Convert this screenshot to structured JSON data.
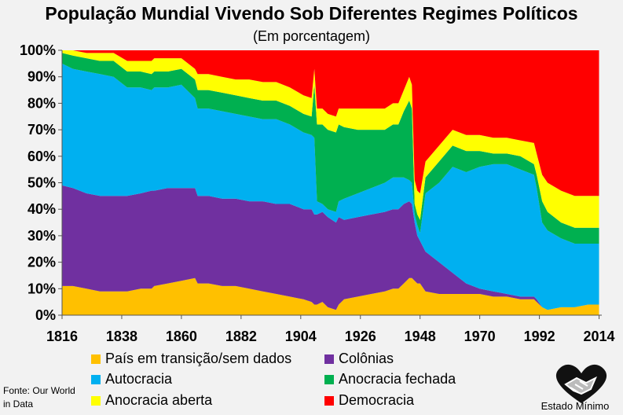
{
  "chart_data": {
    "type": "area",
    "stacked": true,
    "title": "População Mundial Vivendo Sob Diferentes Regimes Políticos",
    "subtitle": "(Em porcentagem)",
    "xlabel": "",
    "ylabel": "",
    "xlim": [
      1816,
      2015
    ],
    "ylim": [
      0,
      100
    ],
    "x_ticks": [
      "1816",
      "1838",
      "1860",
      "1882",
      "1904",
      "1926",
      "1948",
      "1970",
      "1992",
      "2014"
    ],
    "y_ticks": [
      "0%",
      "10%",
      "20%",
      "30%",
      "40%",
      "50%",
      "60%",
      "70%",
      "80%",
      "90%",
      "100%"
    ],
    "grid": false,
    "legend": "bottom",
    "x": [
      1816,
      1820,
      1825,
      1830,
      1835,
      1840,
      1845,
      1849,
      1850,
      1855,
      1860,
      1865,
      1866,
      1870,
      1875,
      1880,
      1885,
      1890,
      1895,
      1900,
      1905,
      1908,
      1909,
      1910,
      1912,
      1914,
      1917,
      1918,
      1920,
      1925,
      1930,
      1935,
      1938,
      1940,
      1942,
      1944,
      1945,
      1946,
      1947,
      1948,
      1950,
      1955,
      1960,
      1965,
      1970,
      1975,
      1980,
      1985,
      1990,
      1991,
      1993,
      1995,
      2000,
      2005,
      2010,
      2014
    ],
    "series": [
      {
        "name": "País em transição/sem dados",
        "color": "#ffc000",
        "values": [
          11,
          11,
          10,
          9,
          9,
          9,
          10,
          10,
          11,
          12,
          13,
          14,
          12,
          12,
          11,
          11,
          10,
          9,
          8,
          7,
          6,
          5,
          4,
          4,
          5,
          3,
          2,
          4,
          6,
          7,
          8,
          9,
          10,
          10,
          12,
          14,
          14,
          13,
          12,
          12,
          9,
          8,
          8,
          8,
          8,
          7,
          7,
          6,
          6,
          5,
          3,
          2,
          3,
          3,
          4,
          4
        ]
      },
      {
        "name": "Colônias",
        "color": "#7030a0",
        "values": [
          38,
          37,
          36,
          36,
          36,
          36,
          36,
          37,
          36,
          36,
          35,
          34,
          33,
          33,
          33,
          33,
          33,
          34,
          34,
          35,
          34,
          35,
          34,
          34,
          34,
          34,
          33,
          33,
          30,
          30,
          30,
          30,
          30,
          30,
          30,
          29,
          28,
          22,
          18,
          16,
          15,
          12,
          8,
          4,
          2,
          2,
          1,
          1,
          1,
          1,
          0,
          0,
          0,
          0,
          0,
          0
        ]
      },
      {
        "name": "Autocracia",
        "color": "#00b0f0",
        "values": [
          46,
          45,
          46,
          46,
          45,
          41,
          40,
          38,
          39,
          38,
          39,
          34,
          33,
          33,
          33,
          32,
          32,
          31,
          32,
          30,
          29,
          28,
          29,
          5,
          3,
          3,
          4,
          6,
          8,
          9,
          10,
          11,
          12,
          12,
          10,
          8,
          8,
          3,
          4,
          3,
          22,
          30,
          40,
          42,
          46,
          48,
          49,
          48,
          46,
          42,
          32,
          30,
          26,
          24,
          23,
          23
        ]
      },
      {
        "name": "Anocracia fechada",
        "color": "#00b050",
        "values": [
          4,
          5,
          5,
          5,
          6,
          6,
          6,
          6,
          6,
          6,
          6,
          7,
          7,
          7,
          7,
          7,
          7,
          7,
          7,
          7,
          7,
          7,
          20,
          29,
          30,
          30,
          30,
          29,
          27,
          24,
          22,
          20,
          20,
          20,
          25,
          30,
          28,
          4,
          4,
          5,
          6,
          8,
          8,
          8,
          6,
          4,
          4,
          5,
          4,
          5,
          8,
          7,
          6,
          6,
          6,
          6
        ]
      },
      {
        "name": "Anocracia aberta",
        "color": "#ffff00",
        "values": [
          1,
          2,
          2,
          3,
          3,
          4,
          4,
          5,
          5,
          5,
          4,
          4,
          6,
          6,
          6,
          6,
          7,
          7,
          7,
          7,
          7,
          7,
          6,
          6,
          6,
          6,
          6,
          6,
          7,
          8,
          8,
          8,
          8,
          8,
          8,
          9,
          9,
          9,
          9,
          10,
          6,
          6,
          6,
          6,
          6,
          6,
          6,
          6,
          8,
          8,
          10,
          11,
          12,
          12,
          12,
          12
        ]
      },
      {
        "name": "Democracia",
        "color": "#ff0000",
        "values": [
          0,
          0,
          1,
          1,
          1,
          4,
          4,
          4,
          3,
          3,
          3,
          7,
          9,
          9,
          10,
          11,
          11,
          12,
          12,
          14,
          17,
          18,
          7,
          22,
          22,
          24,
          25,
          22,
          22,
          22,
          22,
          22,
          20,
          20,
          15,
          10,
          13,
          49,
          53,
          54,
          42,
          36,
          30,
          32,
          32,
          33,
          33,
          34,
          35,
          39,
          47,
          50,
          53,
          55,
          55,
          55
        ]
      }
    ]
  },
  "source_text": "Fonte: Our World in Data",
  "logo_text": "Estado Mínimo",
  "logo_icon": "handshake-heart-icon"
}
